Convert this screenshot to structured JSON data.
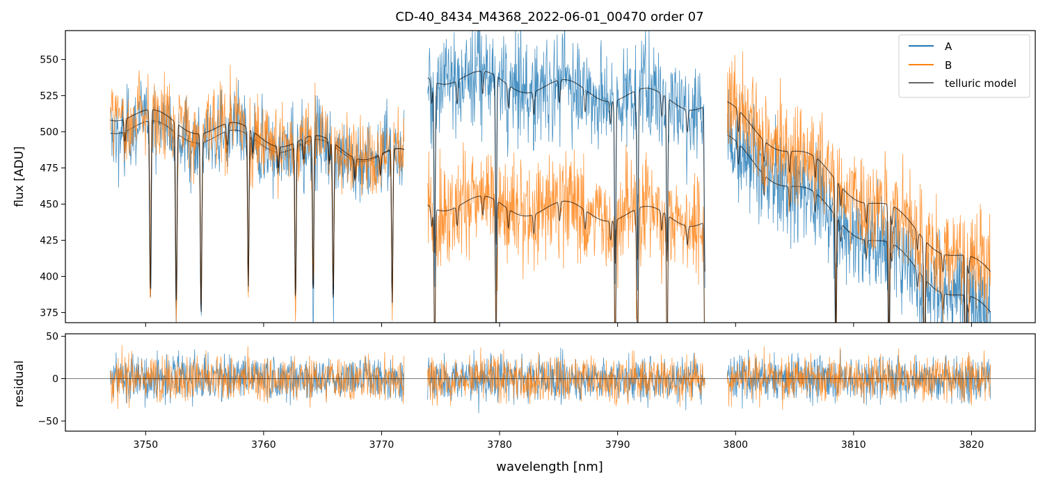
{
  "chart_data": [
    {
      "panel": "top",
      "type": "line",
      "title": "CD-40_8434_M4368_2022-06-01_00470  order 07",
      "xlabel": "",
      "ylabel": "flux [ADU]",
      "xlim": [
        3743.2,
        3825.4
      ],
      "ylim": [
        368,
        570
      ],
      "yticks": [
        375,
        400,
        425,
        450,
        475,
        500,
        525,
        550
      ],
      "ytick_labels": [
        "375",
        "400",
        "425",
        "450",
        "475",
        "500",
        "525",
        "550"
      ],
      "xticks": [
        3750,
        3760,
        3770,
        3780,
        3790,
        3800,
        3810,
        3820
      ],
      "legend": {
        "location": "top-right",
        "entries": [
          {
            "label": "A",
            "color": "#1f77b4"
          },
          {
            "label": "B",
            "color": "#ff7f0e"
          },
          {
            "label": "telluric model",
            "color": "#000000"
          }
        ]
      },
      "segments": [
        {
          "x_range": [
            3747.0,
            3771.9
          ],
          "A_level": [
            505,
            482
          ],
          "B_level": [
            514,
            482
          ],
          "noise": 24
        },
        {
          "x_range": [
            3773.9,
            3797.4
          ],
          "A_level": [
            540,
            520
          ],
          "B_level": [
            452,
            440
          ],
          "noise": 30
        },
        {
          "x_range": [
            3799.3,
            3821.6
          ],
          "A_level": [
            492,
            372
          ],
          "B_level": [
            515,
            400
          ],
          "noise": 30
        }
      ],
      "telluric_lines_nm": [
        3750.4,
        3752.6,
        3754.7,
        3758.7,
        3762.7,
        3764.2,
        3765.9,
        3770.9,
        3774.5,
        3779.7,
        3789.8,
        3791.7,
        3794.2,
        3797.4,
        3808.5,
        3813.0,
        3816.0,
        3819.5
      ]
    },
    {
      "panel": "bottom",
      "type": "line",
      "title": "",
      "xlabel": "wavelength [nm]",
      "ylabel": "residual",
      "xlim": [
        3743.2,
        3825.4
      ],
      "ylim": [
        -62,
        53
      ],
      "yticks": [
        -50,
        0,
        50
      ],
      "ytick_labels": [
        "−50",
        "0",
        "50"
      ],
      "xticks": [
        3750,
        3760,
        3770,
        3780,
        3790,
        3800,
        3810,
        3820
      ],
      "xtick_labels": [
        "3750",
        "3760",
        "3770",
        "3780",
        "3790",
        "3800",
        "3810",
        "3820"
      ],
      "zero_line": 0,
      "noise_amplitude": 25
    }
  ]
}
